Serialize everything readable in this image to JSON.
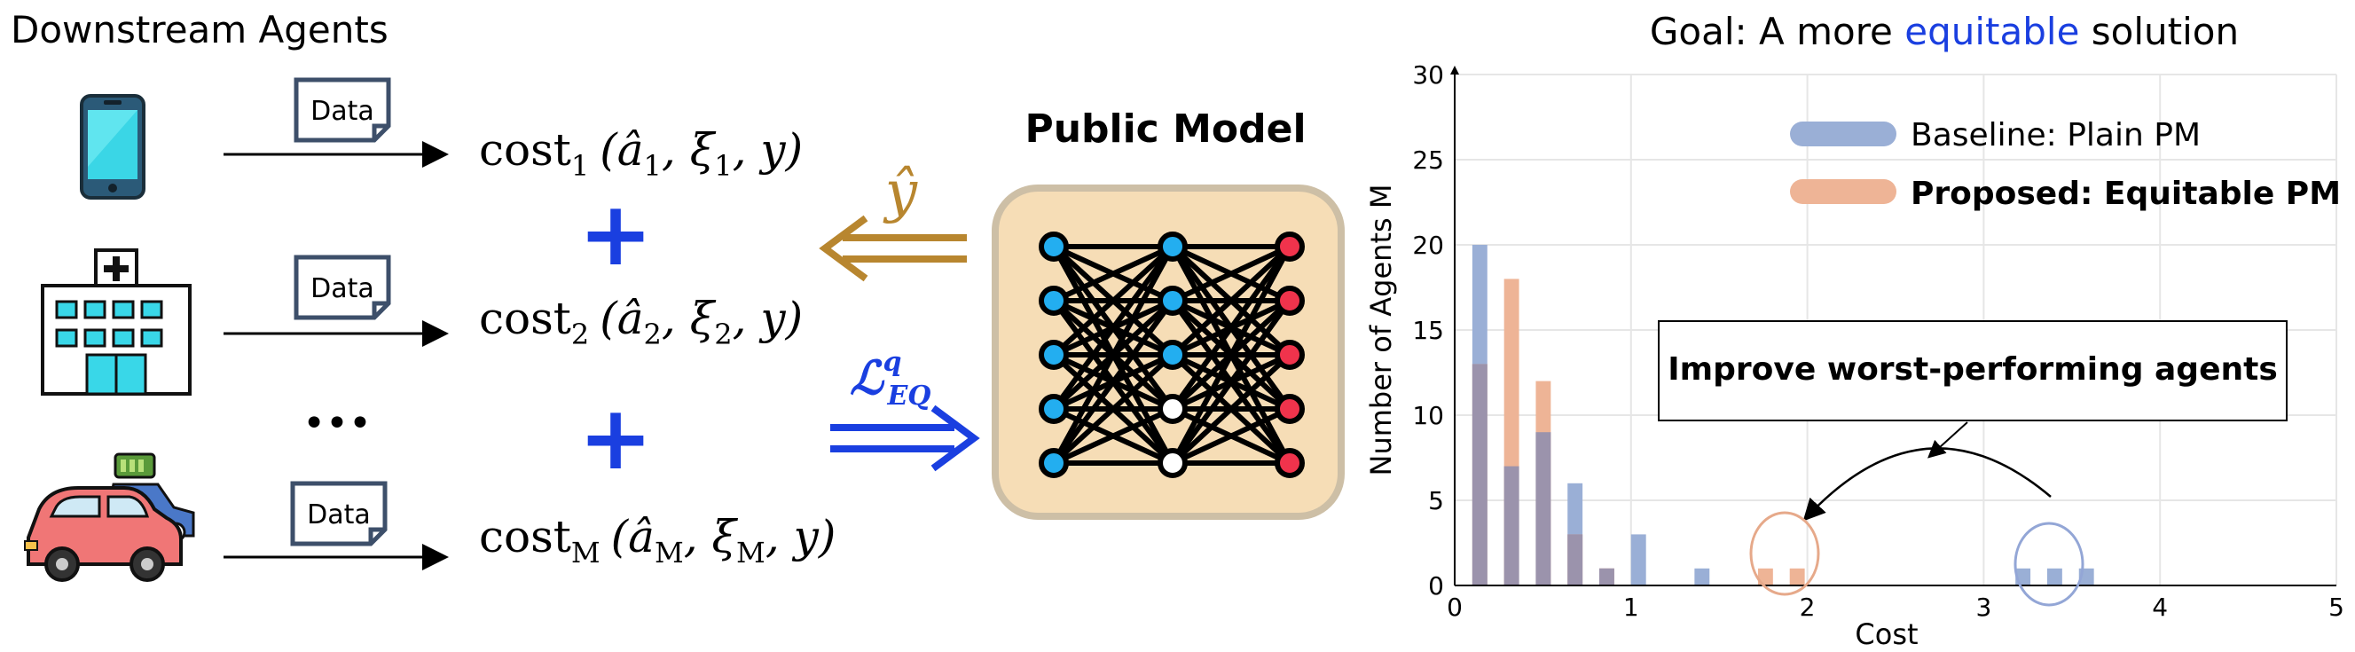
{
  "left": {
    "title": "Downstream Agents",
    "data_label": "Data",
    "ellipsis": "•••",
    "plus": "+",
    "agents": [
      {
        "icon": "smartphone-icon",
        "cost_name": "cost",
        "sub": "1",
        "args": "(â",
        "arg_sub": "1",
        "mid": ", ξ",
        "mid_sub": "1",
        "tail": ", y)"
      },
      {
        "icon": "hospital-icon",
        "cost_name": "cost",
        "sub": "2",
        "args": "(â",
        "arg_sub": "2",
        "mid": ", ξ",
        "mid_sub": "2",
        "tail": ", y)"
      },
      {
        "icon": "car-icon",
        "cost_name": "cost",
        "sub": "M",
        "args": "(â",
        "arg_sub": "M",
        "mid": ", ξ",
        "mid_sub": "M",
        "tail": ", y)"
      }
    ]
  },
  "middle": {
    "yhat_label": "ŷ",
    "loss_label": "ℒ",
    "loss_sup": "q",
    "loss_sub": "EQ",
    "model_title": "Public Model"
  },
  "colors": {
    "gold": "#b8862f",
    "blue": "#1a3fe0",
    "baseline": "#9aafd6",
    "proposed": "#eeb496",
    "overlap": "#9b93ac",
    "model_bg": "#f6ddb6",
    "model_border": "#cdbfa6",
    "node_blue": "#23aef0",
    "node_red": "#f0334c"
  },
  "chart_data": {
    "type": "bar",
    "title_prefix": "Goal: A more ",
    "title_highlight": "equitable",
    "title_suffix": " solution",
    "xlabel": "Cost",
    "ylabel": "Number of Agents M",
    "xlim": [
      0,
      5
    ],
    "ylim": [
      0,
      30
    ],
    "xticks": [
      0,
      1,
      2,
      3,
      4,
      5
    ],
    "yticks": [
      0,
      5,
      10,
      15,
      20,
      25,
      30
    ],
    "grid": true,
    "legend_position": "top-right",
    "bin_width": 0.09,
    "series": [
      {
        "name": "Baseline: Plain PM",
        "bins": [
          [
            0.1,
            20
          ],
          [
            0.28,
            7
          ],
          [
            0.46,
            9
          ],
          [
            0.64,
            6
          ],
          [
            0.82,
            1
          ],
          [
            1.0,
            3
          ],
          [
            1.36,
            1
          ],
          [
            3.18,
            1
          ],
          [
            3.36,
            1
          ],
          [
            3.54,
            1
          ]
        ]
      },
      {
        "name": "Proposed: Equitable PM",
        "bins": [
          [
            0.1,
            13
          ],
          [
            0.28,
            18
          ],
          [
            0.46,
            12
          ],
          [
            0.64,
            3
          ],
          [
            0.82,
            1
          ],
          [
            1.72,
            1
          ],
          [
            1.9,
            1
          ]
        ]
      }
    ],
    "annotation": "Improve worst-performing agents"
  }
}
